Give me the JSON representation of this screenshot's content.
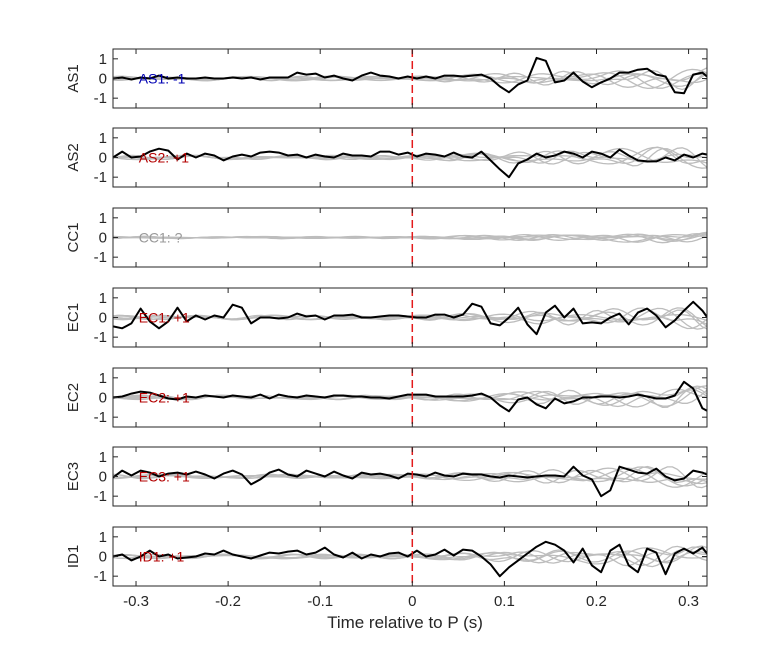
{
  "chart_data": {
    "type": "line",
    "xlabel": "Time relative to P (s)",
    "xlim": [
      -0.325,
      0.32
    ],
    "xticks": [
      -0.3,
      -0.2,
      -0.1,
      0,
      0.1,
      0.2,
      0.3
    ],
    "xtick_labels": [
      "-0.3",
      "-0.2",
      "-0.1",
      "0",
      "0.1",
      "0.2",
      "0.3"
    ],
    "ylim": [
      -1.5,
      1.5
    ],
    "yticks": [
      -1,
      0,
      1
    ],
    "ytick_labels": [
      "-1",
      "0",
      "1"
    ],
    "dt": 0.01,
    "marker_x": 0,
    "marker_color": "#e41a1c",
    "trace_color": "#000000",
    "background_trace_color": "#bdbdbd",
    "panels": [
      {
        "name": "AS1",
        "label": "AS1: -1",
        "label_color": "#0000b3",
        "x_start": -0.325,
        "values": [
          0.0,
          0.05,
          -0.05,
          0.05,
          0.0,
          0.15,
          0.0,
          0.05,
          0.0,
          0.0,
          0.05,
          0.0,
          0.0,
          0.05,
          0.0,
          0.05,
          -0.05,
          0.05,
          0.05,
          0.05,
          0.3,
          0.2,
          0.25,
          0.05,
          0.15,
          0.0,
          -0.1,
          0.15,
          0.3,
          0.15,
          0.1,
          0.0,
          0.1,
          0.0,
          0.1,
          0.0,
          0.15,
          0.15,
          0.1,
          0.15,
          0.2,
          0.0,
          -0.4,
          -0.7,
          -0.3,
          -0.1,
          1.05,
          0.9,
          -0.2,
          -0.1,
          0.3,
          -0.15,
          -0.45,
          -0.2,
          0.0,
          0.3,
          0.3,
          0.45,
          0.5,
          0.2,
          0.1,
          -0.7,
          -0.75,
          0.2,
          0.3,
          -0.1,
          0.0,
          0.15,
          0.1,
          -0.2,
          0.6,
          0.55,
          -0.1,
          0.25,
          0.45,
          0.1
        ]
      },
      {
        "name": "AS2",
        "label": "AS2: +1",
        "label_color": "#b30000",
        "x_start": -0.325,
        "values": [
          0.0,
          0.3,
          0.0,
          0.05,
          0.3,
          0.45,
          0.35,
          -0.1,
          0.2,
          0.0,
          0.2,
          0.1,
          -0.15,
          0.05,
          0.15,
          0.05,
          0.25,
          0.3,
          0.25,
          0.1,
          0.15,
          0.0,
          0.15,
          0.05,
          0.0,
          0.2,
          0.1,
          0.1,
          0.05,
          0.3,
          0.3,
          0.15,
          0.25,
          0.05,
          0.2,
          0.15,
          0.05,
          0.25,
          0.05,
          0.0,
          0.3,
          -0.15,
          -0.6,
          -1.0,
          -0.3,
          -0.1,
          0.2,
          0.0,
          0.1,
          0.3,
          0.2,
          0.0,
          0.3,
          0.2,
          0.0,
          0.4,
          0.1,
          -0.15,
          -0.2,
          -0.2,
          0.0,
          -0.15,
          0.15,
          0.0,
          0.2,
          0.1,
          0.0,
          -0.4,
          -0.3,
          0.0,
          0.1,
          0.0,
          0.2,
          0.55,
          0.1,
          0.05
        ]
      },
      {
        "name": "CC1",
        "label": "CC1: ?",
        "label_color": "#999999",
        "x_start": -0.325,
        "values": []
      },
      {
        "name": "EC1",
        "label": "EC1: +1",
        "label_color": "#b30000",
        "x_start": -0.325,
        "values": [
          -0.45,
          -0.55,
          -0.3,
          0.45,
          -0.2,
          -0.55,
          -0.2,
          0.5,
          -0.2,
          0.1,
          -0.1,
          0.1,
          0.0,
          0.65,
          0.5,
          -0.3,
          0.0,
          0.0,
          -0.05,
          0.0,
          0.2,
          0.05,
          0.1,
          -0.1,
          0.1,
          0.1,
          0.15,
          0.0,
          0.0,
          0.05,
          0.1,
          0.1,
          0.05,
          0.0,
          0.0,
          0.15,
          0.15,
          0.0,
          0.15,
          0.7,
          0.55,
          -0.3,
          -0.4,
          0.0,
          0.5,
          -0.35,
          -0.85,
          0.25,
          0.6,
          0.0,
          0.45,
          -0.3,
          -0.25,
          -0.3,
          0.0,
          0.2,
          -0.35,
          0.25,
          0.45,
          0.1,
          -0.5,
          -0.15,
          0.35,
          0.8,
          0.35,
          -0.3,
          -0.5,
          -0.45,
          -0.1,
          0.9,
          0.0,
          0.0,
          -0.1,
          -0.6,
          0.2,
          0.2
        ]
      },
      {
        "name": "EC2",
        "label": "EC2: +1",
        "label_color": "#b30000",
        "x_start": -0.325,
        "values": [
          0.0,
          0.05,
          0.2,
          0.3,
          0.25,
          0.1,
          -0.05,
          -0.1,
          0.05,
          0.0,
          0.1,
          0.05,
          0.0,
          0.1,
          0.05,
          0.0,
          0.15,
          -0.05,
          0.15,
          0.05,
          0.0,
          0.1,
          0.05,
          0.0,
          0.1,
          0.1,
          0.05,
          0.05,
          0.0,
          0.0,
          -0.05,
          0.05,
          0.15,
          0.15,
          0.15,
          0.05,
          0.05,
          0.05,
          0.05,
          0.1,
          0.2,
          0.0,
          -0.4,
          -0.7,
          -0.1,
          0.0,
          -0.35,
          -0.55,
          -0.05,
          -0.3,
          -0.2,
          0.0,
          0.0,
          0.05,
          0.05,
          0.0,
          0.05,
          0.15,
          0.05,
          -0.05,
          -0.05,
          0.1,
          0.8,
          0.45,
          -0.55,
          -0.8,
          0.55,
          0.25,
          -0.1,
          -0.15,
          0.8,
          0.95,
          0.1,
          0.4,
          -0.05,
          0.25
        ]
      },
      {
        "name": "EC3",
        "label": "EC3: +1",
        "label_color": "#b30000",
        "x_start": -0.325,
        "values": [
          -0.05,
          0.3,
          0.05,
          0.3,
          0.2,
          0.0,
          0.15,
          0.2,
          0.1,
          0.25,
          0.1,
          -0.1,
          0.15,
          0.3,
          0.1,
          -0.4,
          -0.15,
          0.2,
          0.35,
          0.1,
          0.0,
          0.3,
          0.15,
          0.0,
          0.25,
          0.05,
          -0.1,
          0.2,
          0.1,
          0.15,
          0.05,
          -0.1,
          0.15,
          0.1,
          0.0,
          0.2,
          0.05,
          0.0,
          0.15,
          0.1,
          0.1,
          0.0,
          -0.05,
          0.05,
          0.0,
          -0.05,
          0.0,
          0.05,
          0.05,
          0.0,
          0.5,
          0.05,
          -0.15,
          -1.0,
          -0.7,
          0.5,
          0.35,
          0.2,
          0.15,
          0.4,
          0.0,
          -0.2,
          -0.1,
          0.3,
          0.2,
          0.0,
          0.05,
          0.0,
          -0.05,
          -0.05,
          0.1,
          0.3,
          -0.05,
          0.2,
          0.05
        ]
      },
      {
        "name": "ID1",
        "label": "ID1: +1",
        "label_color": "#b30000",
        "x_start": -0.325,
        "values": [
          0.0,
          0.1,
          -0.2,
          0.0,
          0.3,
          0.0,
          0.1,
          -0.1,
          -0.05,
          0.0,
          0.15,
          0.1,
          0.3,
          0.1,
          0.0,
          -0.1,
          0.05,
          0.2,
          0.15,
          0.25,
          0.3,
          0.1,
          0.2,
          0.45,
          0.1,
          -0.05,
          0.2,
          -0.1,
          0.1,
          0.0,
          0.15,
          0.2,
          0.0,
          0.3,
          0.0,
          0.1,
          0.35,
          0.05,
          0.35,
          0.3,
          0.0,
          -0.4,
          -1.0,
          -0.55,
          -0.2,
          0.15,
          0.5,
          0.75,
          0.6,
          0.3,
          -0.3,
          0.4,
          -0.45,
          -0.8,
          0.3,
          0.6,
          -0.45,
          -0.8,
          0.4,
          0.2,
          -0.9,
          0.15,
          0.4,
          0.15,
          0.45,
          -0.15,
          0.3,
          0.0,
          0.2,
          0.6,
          0.0,
          0.3,
          -0.45,
          -0.45
        ]
      }
    ]
  }
}
